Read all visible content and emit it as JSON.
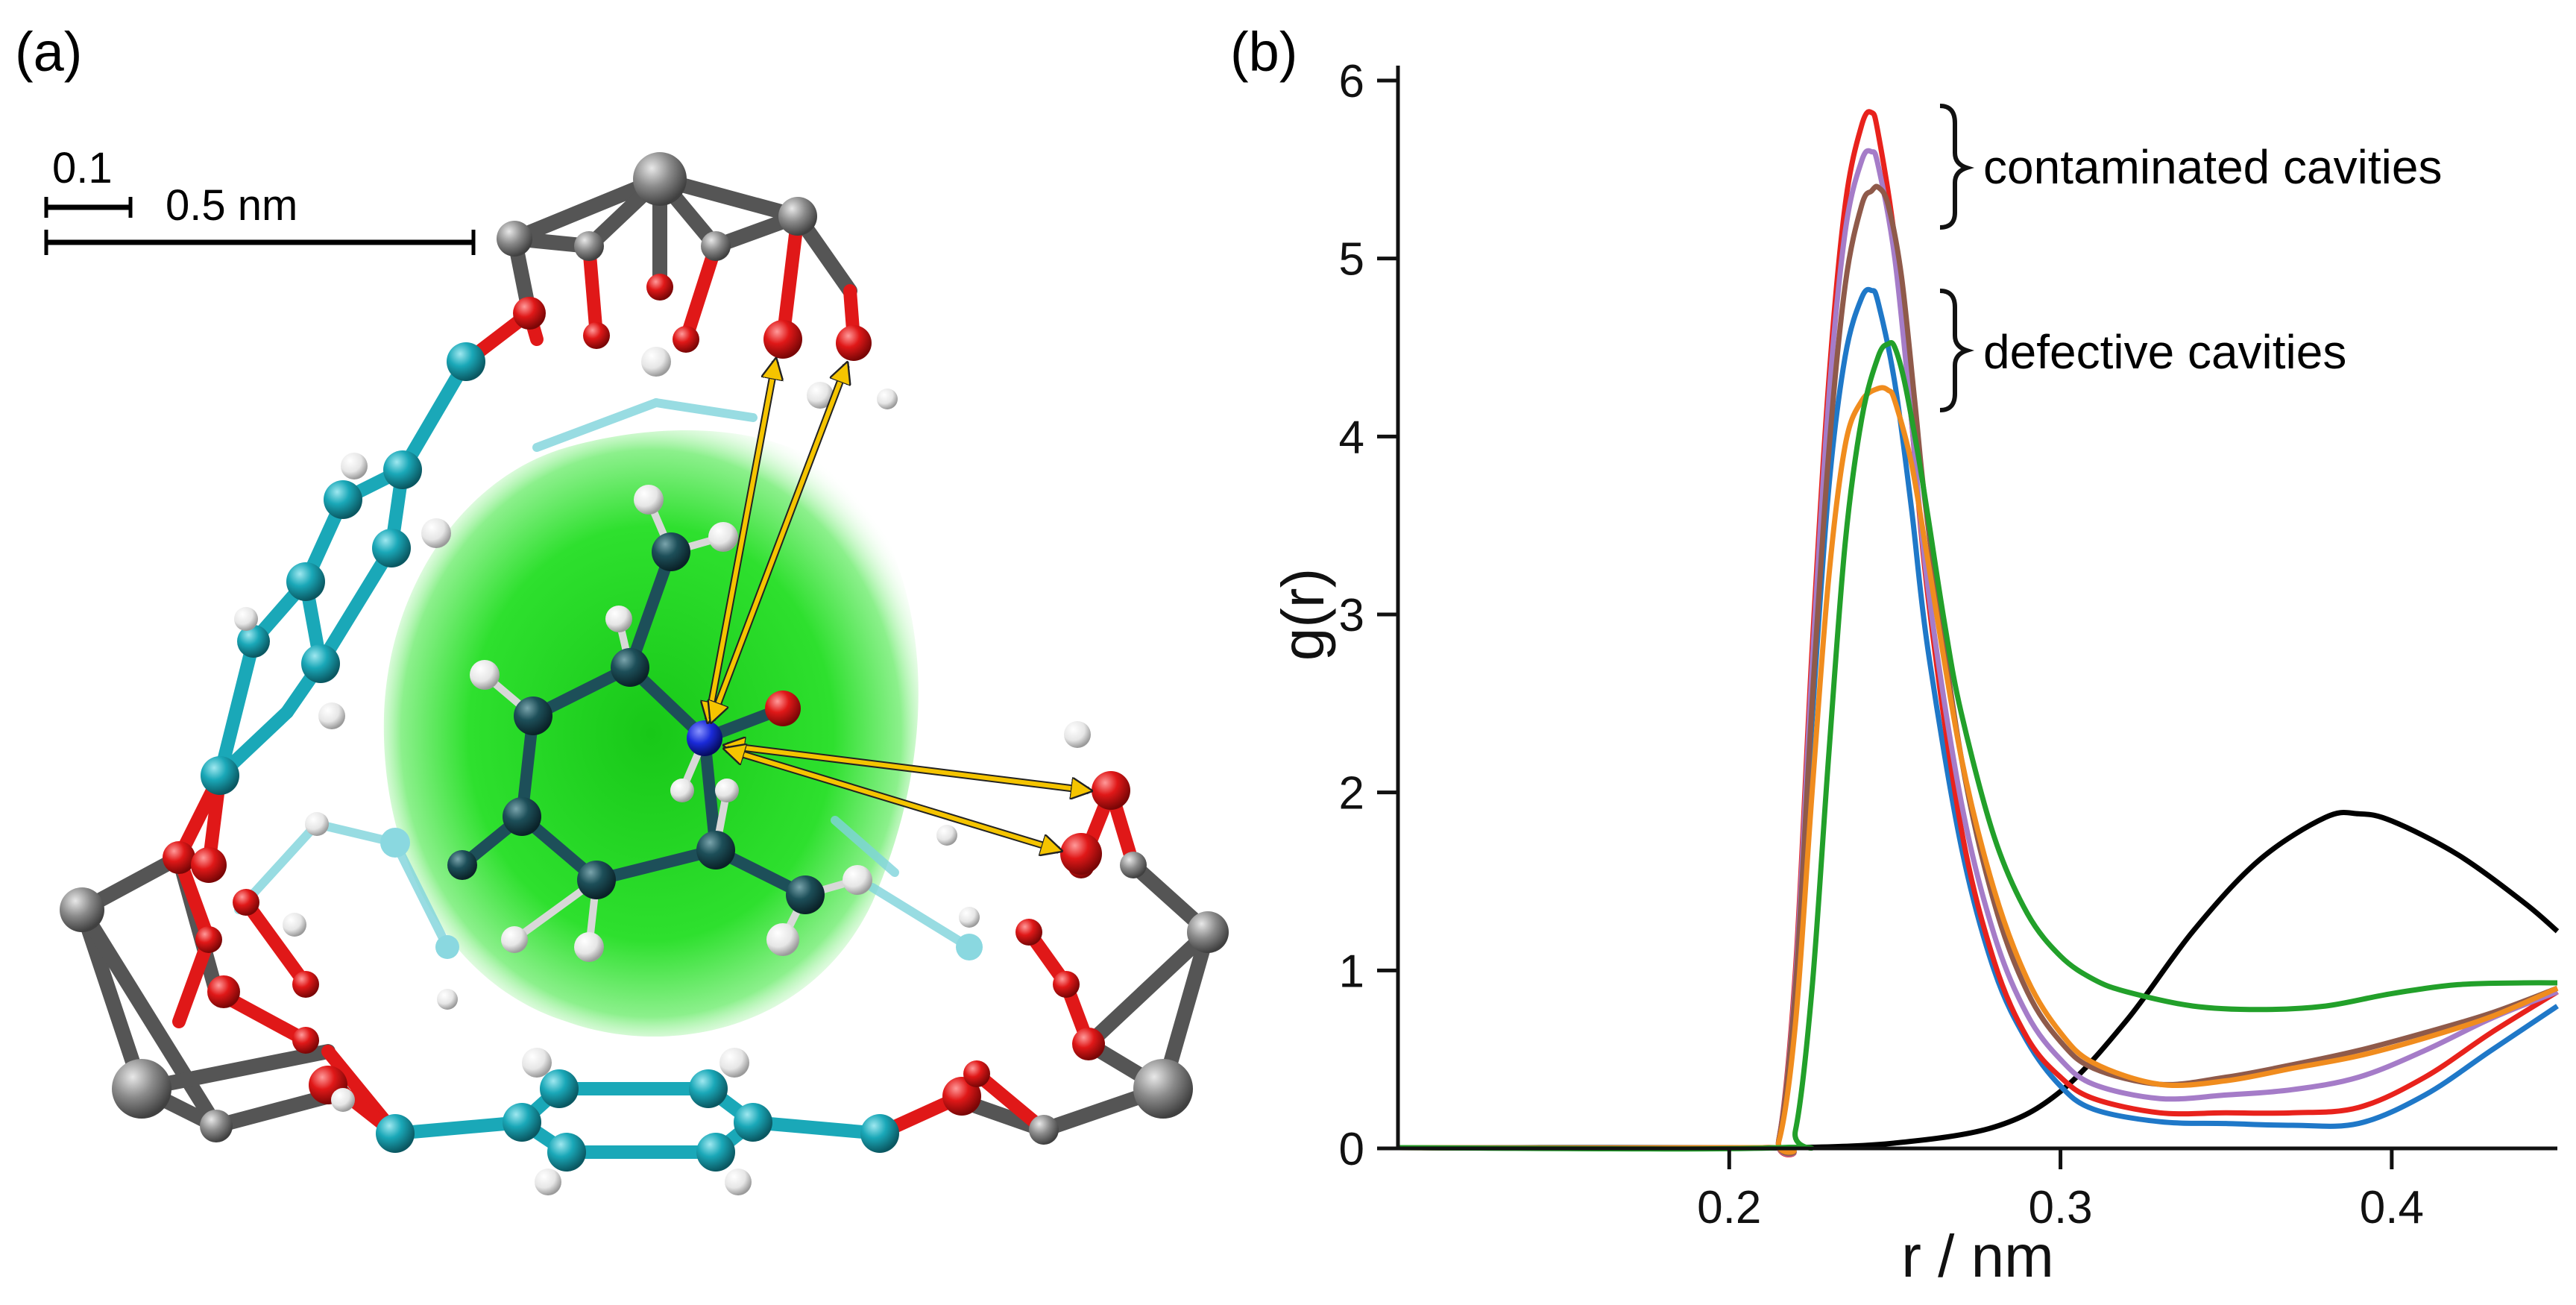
{
  "panel_a": {
    "label": "(a)",
    "scale_bar_small_label": "0.1",
    "scale_bar_large_label": "0.5 nm",
    "colors": {
      "cavity_glow": "#22dd22",
      "linker_carbon": "#1aa8b8",
      "oxygen": "#e01818",
      "metal": "#8a8a8a",
      "hydrogen": "#f2f2f2",
      "guest_carbon": "#1d4f59",
      "nitrogen": "#1a2ad8",
      "arrow": "#f5c400"
    }
  },
  "panel_b": {
    "label": "(b)",
    "annotation_contaminated": "contaminated cavities",
    "annotation_defective": "defective cavities"
  },
  "chart_data": {
    "type": "line",
    "title": "",
    "xlabel": "r / nm",
    "ylabel": "g(r)",
    "xlim": [
      0.1,
      0.45
    ],
    "ylim": [
      0,
      6
    ],
    "xticks": [
      0.2,
      0.3,
      0.4
    ],
    "xtick_labels": [
      "0.2",
      "0.3",
      "0.4"
    ],
    "yticks": [
      0,
      1,
      2,
      3,
      4,
      5,
      6
    ],
    "ytick_labels": [
      "0",
      "1",
      "2",
      "3",
      "4",
      "5",
      "6"
    ],
    "grid": false,
    "series": [
      {
        "name": "black",
        "color": "#000000",
        "x": [
          0.1,
          0.2,
          0.22,
          0.25,
          0.28,
          0.3,
          0.32,
          0.34,
          0.36,
          0.38,
          0.39,
          0.4,
          0.42,
          0.44,
          0.45
        ],
        "y": [
          0,
          0,
          0.0,
          0.03,
          0.12,
          0.32,
          0.72,
          1.22,
          1.62,
          1.86,
          1.88,
          1.84,
          1.65,
          1.38,
          1.22
        ]
      },
      {
        "name": "blue",
        "color": "#1f78c8",
        "x": [
          0.1,
          0.21,
          0.215,
          0.22,
          0.225,
          0.23,
          0.235,
          0.24,
          0.243,
          0.245,
          0.25,
          0.255,
          0.26,
          0.27,
          0.28,
          0.29,
          0.3,
          0.31,
          0.33,
          0.35,
          0.37,
          0.39,
          0.41,
          0.43,
          0.45
        ],
        "y": [
          0,
          0,
          0.05,
          0.9,
          2.4,
          3.7,
          4.45,
          4.78,
          4.82,
          4.75,
          4.3,
          3.6,
          2.8,
          1.7,
          1.0,
          0.6,
          0.35,
          0.22,
          0.15,
          0.14,
          0.13,
          0.14,
          0.3,
          0.55,
          0.8
        ]
      },
      {
        "name": "red",
        "color": "#e8221c",
        "x": [
          0.1,
          0.21,
          0.215,
          0.22,
          0.225,
          0.23,
          0.235,
          0.24,
          0.243,
          0.245,
          0.25,
          0.255,
          0.26,
          0.27,
          0.28,
          0.29,
          0.3,
          0.31,
          0.33,
          0.35,
          0.37,
          0.39,
          0.41,
          0.43,
          0.45
        ],
        "y": [
          0,
          0,
          0.05,
          1.0,
          2.8,
          4.3,
          5.3,
          5.75,
          5.82,
          5.7,
          5.1,
          4.1,
          3.1,
          1.8,
          1.05,
          0.62,
          0.4,
          0.28,
          0.2,
          0.2,
          0.2,
          0.23,
          0.4,
          0.65,
          0.88
        ]
      },
      {
        "name": "purple",
        "color": "#a57cc8",
        "x": [
          0.1,
          0.21,
          0.215,
          0.22,
          0.225,
          0.23,
          0.235,
          0.24,
          0.243,
          0.245,
          0.25,
          0.255,
          0.26,
          0.27,
          0.28,
          0.29,
          0.3,
          0.31,
          0.33,
          0.35,
          0.37,
          0.39,
          0.41,
          0.43,
          0.45
        ],
        "y": [
          0,
          0,
          0.05,
          0.95,
          2.7,
          4.2,
          5.15,
          5.55,
          5.6,
          5.52,
          5.0,
          4.1,
          3.15,
          1.95,
          1.2,
          0.75,
          0.5,
          0.36,
          0.28,
          0.3,
          0.33,
          0.4,
          0.55,
          0.73,
          0.88
        ]
      },
      {
        "name": "brown",
        "color": "#8f5a4a",
        "x": [
          0.1,
          0.21,
          0.215,
          0.22,
          0.225,
          0.23,
          0.235,
          0.24,
          0.243,
          0.245,
          0.248,
          0.252,
          0.256,
          0.26,
          0.27,
          0.28,
          0.29,
          0.3,
          0.31,
          0.33,
          0.35,
          0.37,
          0.39,
          0.41,
          0.43,
          0.45
        ],
        "y": [
          0,
          0,
          0.05,
          0.9,
          2.5,
          3.9,
          4.85,
          5.3,
          5.38,
          5.4,
          5.3,
          4.9,
          4.2,
          3.5,
          2.2,
          1.38,
          0.88,
          0.6,
          0.45,
          0.36,
          0.4,
          0.47,
          0.55,
          0.65,
          0.76,
          0.9
        ]
      },
      {
        "name": "orange",
        "color": "#f08c1e",
        "x": [
          0.1,
          0.21,
          0.215,
          0.22,
          0.225,
          0.23,
          0.235,
          0.24,
          0.245,
          0.248,
          0.25,
          0.255,
          0.26,
          0.27,
          0.28,
          0.29,
          0.3,
          0.31,
          0.33,
          0.35,
          0.37,
          0.39,
          0.41,
          0.43,
          0.45
        ],
        "y": [
          0,
          0,
          0.04,
          0.7,
          2.0,
          3.2,
          3.95,
          4.2,
          4.27,
          4.26,
          4.2,
          3.85,
          3.3,
          2.2,
          1.45,
          0.95,
          0.65,
          0.48,
          0.36,
          0.38,
          0.45,
          0.52,
          0.62,
          0.74,
          0.9
        ]
      },
      {
        "name": "green",
        "color": "#22a02a",
        "x": [
          0.1,
          0.215,
          0.22,
          0.225,
          0.23,
          0.235,
          0.24,
          0.245,
          0.248,
          0.25,
          0.253,
          0.257,
          0.26,
          0.265,
          0.27,
          0.28,
          0.29,
          0.3,
          0.31,
          0.32,
          0.34,
          0.36,
          0.38,
          0.4,
          0.42,
          0.44,
          0.45
        ],
        "y": [
          0,
          0,
          0.1,
          0.9,
          2.2,
          3.4,
          4.1,
          4.45,
          4.52,
          4.5,
          4.3,
          3.9,
          3.55,
          2.95,
          2.45,
          1.75,
          1.32,
          1.08,
          0.95,
          0.88,
          0.8,
          0.78,
          0.8,
          0.87,
          0.92,
          0.93,
          0.93
        ]
      }
    ]
  }
}
